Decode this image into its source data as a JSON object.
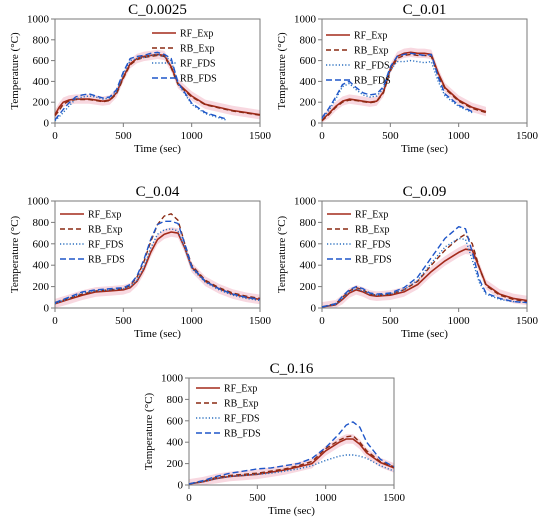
{
  "colors": {
    "RF_Exp": "#a32a1a",
    "RB_Exp": "#8a2a12",
    "RF_FDS": "#2a6fbf",
    "RB_FDS": "#1f56c9",
    "experimental_band": "#f2b8c6"
  },
  "legend_entries": [
    "RF_Exp",
    "RB_Exp",
    "RF_FDS",
    "RB_FDS"
  ],
  "chart_data": [
    {
      "type": "line",
      "title": "C_0.0025",
      "xlabel": "Time (sec)",
      "ylabel": "Temperature (°C)",
      "xlim": [
        0,
        1500
      ],
      "ylim": [
        0,
        1000
      ],
      "xticks": [
        "0",
        "500",
        "1000",
        "1500"
      ],
      "yticks": [
        "0",
        "200",
        "400",
        "600",
        "800",
        "1000"
      ],
      "grid": false,
      "legend_position": "top-right",
      "series": [
        {
          "name": "RF_Exp",
          "x": [
            0,
            30,
            60,
            100,
            150,
            200,
            250,
            300,
            350,
            400,
            450,
            500,
            550,
            600,
            650,
            700,
            750,
            800,
            850,
            900,
            1000,
            1100,
            1200,
            1300,
            1400,
            1500
          ],
          "y": [
            80,
            150,
            200,
            220,
            230,
            230,
            230,
            220,
            210,
            220,
            290,
            440,
            570,
            620,
            640,
            650,
            660,
            650,
            540,
            380,
            260,
            180,
            150,
            120,
            100,
            80
          ]
        },
        {
          "name": "RB_Exp",
          "x": [
            0,
            30,
            60,
            100,
            150,
            200,
            250,
            300,
            350,
            400,
            450,
            500,
            550,
            600,
            650,
            700,
            750,
            800,
            850,
            900,
            1000,
            1100,
            1200,
            1300,
            1400,
            1500
          ],
          "y": [
            70,
            120,
            180,
            210,
            225,
            225,
            225,
            215,
            205,
            215,
            280,
            430,
            560,
            610,
            630,
            640,
            650,
            640,
            530,
            370,
            250,
            175,
            145,
            115,
            95,
            75
          ]
        },
        {
          "name": "RF_FDS",
          "x": [
            0,
            30,
            60,
            100,
            150,
            200,
            250,
            300,
            350,
            400,
            450,
            500,
            550,
            600,
            650,
            700,
            750,
            800,
            850,
            900,
            1000,
            1100,
            1200,
            1250
          ],
          "y": [
            20,
            60,
            100,
            160,
            230,
            250,
            260,
            250,
            230,
            240,
            300,
            470,
            600,
            620,
            630,
            650,
            660,
            640,
            600,
            380,
            180,
            90,
            50,
            30
          ]
        },
        {
          "name": "RB_FDS",
          "x": [
            0,
            30,
            60,
            100,
            150,
            200,
            250,
            300,
            350,
            400,
            450,
            500,
            550,
            600,
            650,
            700,
            750,
            800,
            850,
            900,
            1000,
            1100,
            1200,
            1250
          ],
          "y": [
            30,
            80,
            130,
            190,
            250,
            270,
            280,
            260,
            240,
            250,
            320,
            490,
            620,
            640,
            650,
            670,
            680,
            660,
            620,
            390,
            190,
            100,
            60,
            40
          ]
        }
      ]
    },
    {
      "type": "line",
      "title": "C_0.01",
      "xlabel": "Time (sec)",
      "ylabel": "Temperature (°C)",
      "xlim": [
        0,
        1500
      ],
      "ylim": [
        0,
        1000
      ],
      "xticks": [
        "0",
        "500",
        "1000",
        "1500"
      ],
      "yticks": [
        "0",
        "200",
        "400",
        "600",
        "800",
        "1000"
      ],
      "grid": false,
      "legend_position": "top-left",
      "series": [
        {
          "name": "RF_Exp",
          "x": [
            0,
            50,
            100,
            150,
            200,
            250,
            300,
            350,
            400,
            450,
            500,
            550,
            600,
            650,
            700,
            750,
            800,
            850,
            900,
            1000,
            1100,
            1200
          ],
          "y": [
            30,
            90,
            160,
            210,
            230,
            220,
            210,
            200,
            210,
            300,
            520,
            640,
            670,
            680,
            670,
            670,
            660,
            480,
            340,
            220,
            150,
            110
          ]
        },
        {
          "name": "RB_Exp",
          "x": [
            0,
            50,
            100,
            150,
            200,
            250,
            300,
            350,
            400,
            450,
            500,
            550,
            600,
            650,
            700,
            750,
            800,
            850,
            900,
            1000,
            1100,
            1200
          ],
          "y": [
            20,
            80,
            150,
            200,
            220,
            215,
            205,
            195,
            205,
            290,
            500,
            620,
            650,
            660,
            650,
            650,
            640,
            460,
            330,
            210,
            140,
            100
          ]
        },
        {
          "name": "RF_FDS",
          "x": [
            0,
            50,
            100,
            150,
            200,
            250,
            300,
            350,
            400,
            450,
            500,
            550,
            600,
            650,
            700,
            750,
            800,
            850,
            900,
            1000,
            1100
          ],
          "y": [
            40,
            120,
            230,
            350,
            380,
            320,
            270,
            250,
            260,
            330,
            510,
            590,
            590,
            600,
            590,
            580,
            590,
            400,
            260,
            160,
            100
          ]
        },
        {
          "name": "RB_FDS",
          "x": [
            0,
            50,
            100,
            150,
            200,
            250,
            300,
            350,
            400,
            450,
            500,
            550,
            600,
            650,
            700,
            750,
            800,
            850,
            900,
            1000,
            1100
          ],
          "y": [
            50,
            140,
            250,
            370,
            400,
            340,
            290,
            270,
            280,
            350,
            540,
            640,
            660,
            670,
            660,
            650,
            660,
            440,
            280,
            170,
            110
          ]
        }
      ]
    },
    {
      "type": "line",
      "title": "C_0.04",
      "xlabel": "Time (sec)",
      "ylabel": "Temperature (°C)",
      "xlim": [
        0,
        1500
      ],
      "ylim": [
        0,
        1000
      ],
      "xticks": [
        "0",
        "500",
        "1000",
        "1500"
      ],
      "yticks": [
        "0",
        "200",
        "400",
        "600",
        "800",
        "1000"
      ],
      "grid": false,
      "legend_position": "top-left",
      "series": [
        {
          "name": "RF_Exp",
          "x": [
            0,
            100,
            200,
            300,
            400,
            500,
            550,
            600,
            650,
            700,
            750,
            800,
            850,
            900,
            950,
            1000,
            1100,
            1200,
            1300,
            1400,
            1500
          ],
          "y": [
            40,
            80,
            120,
            150,
            160,
            170,
            190,
            250,
            360,
            520,
            640,
            690,
            710,
            700,
            560,
            380,
            250,
            180,
            130,
            100,
            80
          ]
        },
        {
          "name": "RB_Exp",
          "x": [
            0,
            100,
            200,
            300,
            400,
            500,
            550,
            600,
            650,
            700,
            750,
            800,
            850,
            900,
            950,
            1000,
            1100,
            1200,
            1300,
            1400,
            1500
          ],
          "y": [
            50,
            90,
            130,
            160,
            170,
            180,
            210,
            290,
            430,
            620,
            780,
            860,
            880,
            820,
            600,
            400,
            260,
            190,
            140,
            110,
            90
          ]
        },
        {
          "name": "RF_FDS",
          "x": [
            0,
            100,
            200,
            300,
            400,
            500,
            550,
            600,
            650,
            700,
            750,
            800,
            850,
            900,
            950,
            1000,
            1100,
            1200,
            1300,
            1400,
            1500
          ],
          "y": [
            40,
            90,
            140,
            160,
            170,
            180,
            200,
            260,
            380,
            560,
            690,
            730,
            740,
            720,
            560,
            370,
            240,
            170,
            120,
            90,
            70
          ]
        },
        {
          "name": "RB_FDS",
          "x": [
            0,
            100,
            200,
            300,
            400,
            500,
            550,
            600,
            650,
            700,
            750,
            800,
            850,
            900,
            950,
            1000,
            1100,
            1200,
            1300,
            1400,
            1500
          ],
          "y": [
            50,
            100,
            150,
            170,
            180,
            190,
            220,
            300,
            450,
            640,
            780,
            810,
            810,
            790,
            600,
            390,
            250,
            180,
            130,
            100,
            80
          ]
        }
      ]
    },
    {
      "type": "line",
      "title": "C_0.09",
      "xlabel": "Time (sec)",
      "ylabel": "Temperature (°C)",
      "xlim": [
        0,
        1500
      ],
      "ylim": [
        0,
        1000
      ],
      "xticks": [
        "0",
        "500",
        "1000",
        "1500"
      ],
      "yticks": [
        "0",
        "200",
        "400",
        "600",
        "800",
        "1000"
      ],
      "grid": false,
      "legend_position": "top-left",
      "series": [
        {
          "name": "RF_Exp",
          "x": [
            0,
            100,
            150,
            200,
            250,
            300,
            350,
            400,
            500,
            600,
            700,
            800,
            900,
            1000,
            1050,
            1100,
            1150,
            1200,
            1300,
            1400,
            1500
          ],
          "y": [
            10,
            30,
            80,
            140,
            170,
            150,
            120,
            110,
            120,
            150,
            220,
            340,
            440,
            520,
            550,
            540,
            380,
            220,
            130,
            90,
            70
          ]
        },
        {
          "name": "RB_Exp",
          "x": [
            0,
            100,
            150,
            200,
            250,
            300,
            350,
            400,
            500,
            600,
            700,
            800,
            900,
            1000,
            1050,
            1100,
            1150,
            1200,
            1300,
            1400,
            1500
          ],
          "y": [
            10,
            40,
            100,
            160,
            190,
            170,
            130,
            120,
            130,
            170,
            250,
            400,
            540,
            650,
            690,
            600,
            380,
            210,
            120,
            80,
            60
          ]
        },
        {
          "name": "RF_FDS",
          "x": [
            0,
            100,
            150,
            200,
            250,
            300,
            350,
            400,
            500,
            600,
            700,
            800,
            900,
            1000,
            1050,
            1100,
            1150,
            1200,
            1300,
            1400,
            1500
          ],
          "y": [
            10,
            30,
            90,
            150,
            180,
            160,
            130,
            120,
            130,
            170,
            260,
            420,
            570,
            650,
            640,
            450,
            240,
            130,
            80,
            60,
            50
          ]
        },
        {
          "name": "RB_FDS",
          "x": [
            0,
            100,
            150,
            200,
            250,
            300,
            350,
            400,
            500,
            600,
            700,
            800,
            900,
            1000,
            1050,
            1100,
            1150,
            1200,
            1300,
            1400,
            1500
          ],
          "y": [
            10,
            40,
            110,
            170,
            200,
            180,
            140,
            130,
            140,
            190,
            290,
            470,
            650,
            760,
            740,
            520,
            270,
            140,
            90,
            60,
            50
          ]
        }
      ]
    },
    {
      "type": "line",
      "title": "C_0.16",
      "xlabel": "Time (sec)",
      "ylabel": "Temperature (°C)",
      "xlim": [
        0,
        1500
      ],
      "ylim": [
        0,
        1000
      ],
      "xticks": [
        "0",
        "500",
        "1000",
        "1500"
      ],
      "yticks": [
        "0",
        "200",
        "400",
        "600",
        "800",
        "1000"
      ],
      "grid": false,
      "legend_position": "top-left",
      "series": [
        {
          "name": "RF_Exp",
          "x": [
            0,
            100,
            200,
            300,
            400,
            500,
            600,
            700,
            800,
            900,
            1000,
            1100,
            1150,
            1200,
            1250,
            1300,
            1400,
            1500
          ],
          "y": [
            10,
            30,
            60,
            80,
            90,
            100,
            120,
            140,
            170,
            200,
            320,
            400,
            430,
            430,
            380,
            300,
            210,
            160
          ]
        },
        {
          "name": "RB_Exp",
          "x": [
            0,
            100,
            200,
            300,
            400,
            500,
            600,
            700,
            800,
            900,
            1000,
            1100,
            1150,
            1200,
            1250,
            1300,
            1400,
            1500
          ],
          "y": [
            10,
            35,
            70,
            90,
            100,
            110,
            130,
            150,
            180,
            220,
            340,
            420,
            450,
            460,
            400,
            320,
            220,
            170
          ]
        },
        {
          "name": "RF_FDS",
          "x": [
            0,
            100,
            200,
            300,
            400,
            500,
            600,
            700,
            800,
            900,
            1000,
            1100,
            1150,
            1200,
            1250,
            1300,
            1400,
            1500
          ],
          "y": [
            10,
            30,
            60,
            80,
            90,
            100,
            110,
            130,
            150,
            180,
            230,
            270,
            280,
            280,
            270,
            250,
            180,
            130
          ]
        },
        {
          "name": "RB_FDS",
          "x": [
            0,
            100,
            200,
            300,
            400,
            500,
            600,
            700,
            800,
            900,
            1000,
            1100,
            1150,
            1200,
            1250,
            1300,
            1400,
            1500
          ],
          "y": [
            10,
            40,
            80,
            110,
            130,
            150,
            160,
            180,
            200,
            250,
            350,
            480,
            560,
            590,
            540,
            400,
            240,
            170
          ]
        }
      ]
    }
  ]
}
